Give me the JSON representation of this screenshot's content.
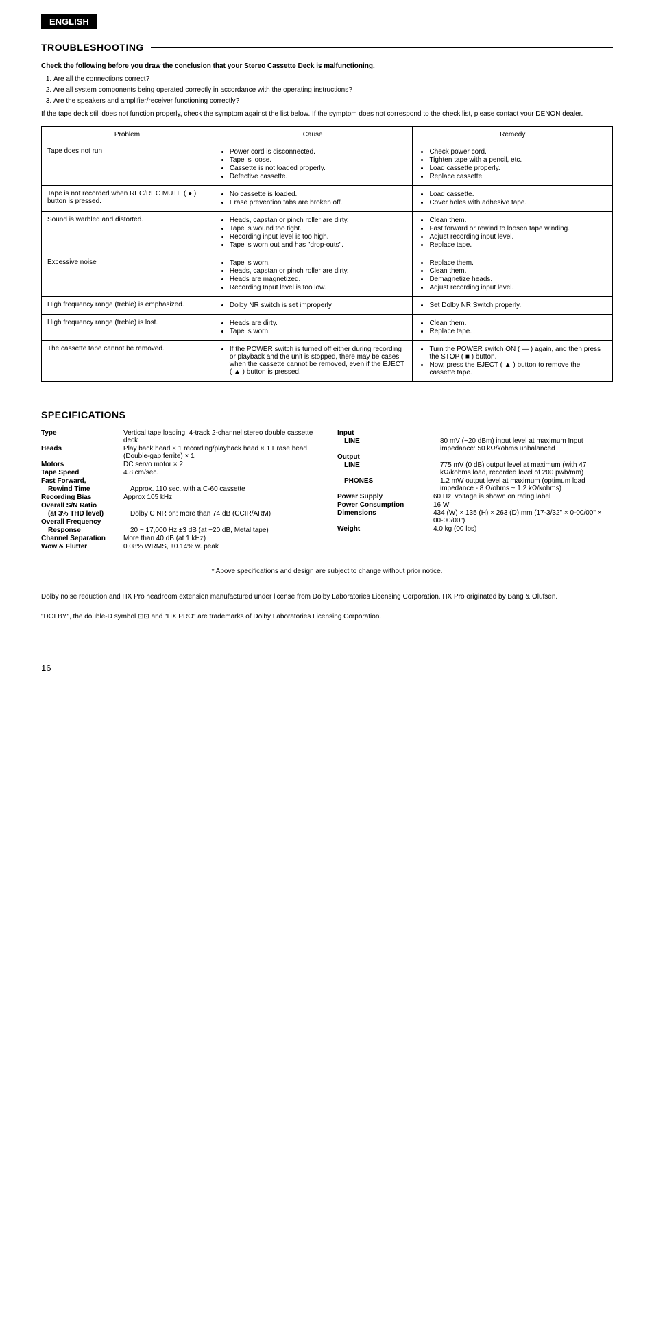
{
  "tag": "ENGLISH",
  "troubleshooting_title": "TROUBLESHOOTING",
  "intro_lead": "Check the following before you draw the conclusion that your Stereo Cassette Deck is malfunctioning.",
  "intro_items": [
    "Are all the connections correct?",
    "Are all system components being operated correctly in accordance with the operating instructions?",
    "Are the speakers and amplifier/receiver functioning correctly?"
  ],
  "intro_tail": "If the tape deck still does not function properly, check the symptom against the list below. If the symptom does not correspond to the check list, please contact your DENON dealer.",
  "headers": {
    "problem": "Problem",
    "cause": "Cause",
    "remedy": "Remedy"
  },
  "rows": [
    {
      "p": "Tape does not run",
      "c": [
        "Power cord is disconnected.",
        "Tape is loose.",
        "Cassette is not loaded properly.",
        "Defective cassette."
      ],
      "r": [
        "Check power cord.",
        "Tighten tape with a pencil, etc.",
        "Load cassette properly.",
        "Replace cassette."
      ]
    },
    {
      "p": "Tape is not recorded when REC/REC MUTE ( ● ) button is pressed.",
      "c": [
        "No cassette is loaded.",
        "Erase prevention tabs are broken off."
      ],
      "r": [
        "Load cassette.",
        "Cover holes with adhesive tape."
      ]
    },
    {
      "p": "Sound is warbled and distorted.",
      "c": [
        "Heads, capstan or pinch roller are dirty.",
        "Tape is wound too tight.",
        "Recording input level is too high.",
        "Tape is worn out and has \"drop-outs\"."
      ],
      "r": [
        "Clean them.",
        "Fast forward or rewind to loosen tape winding.",
        "Adjust recording input level.",
        "Replace tape."
      ]
    },
    {
      "p": "Excessive noise",
      "c": [
        "Tape is worn.",
        "Heads, capstan or pinch roller are dirty.",
        "Heads are magnetized.",
        "Recording Input level is too low."
      ],
      "r": [
        "Replace them.",
        "Clean them.",
        "Demagnetize heads.",
        "Adjust recording input level."
      ]
    },
    {
      "p": "High frequency range (treble) is emphasized.",
      "c": [
        "Dolby NR switch is set improperly."
      ],
      "r": [
        "Set Dolby NR Switch properly."
      ]
    },
    {
      "p": "High frequency range (treble) is lost.",
      "c": [
        "Heads are dirty.",
        "Tape is worn."
      ],
      "r": [
        "Clean them.",
        "Replace tape."
      ]
    },
    {
      "p": "The cassette tape cannot be removed.",
      "c": [
        "If the POWER switch is turned off either during recording or playback and the unit is stopped, there may be cases when the cassette cannot be removed, even if the EJECT ( ▲ ) button is pressed."
      ],
      "r": [
        "Turn the POWER switch ON ( — ) again, and then press the STOP ( ■ ) button.",
        "Now, press the EJECT ( ▲ ) button to remove the cassette tape."
      ]
    }
  ],
  "specs_title": "SPECIFICATIONS",
  "specs_left": [
    {
      "l": "Type",
      "v": "Vertical tape loading; 4-track 2-channel stereo double cassette deck"
    },
    {
      "l": "Heads",
      "v": "Play back head × 1 recording/playback head × 1 Erase head (Double-gap ferrite) × 1"
    },
    {
      "l": "Motors",
      "v": "DC servo motor × 2"
    },
    {
      "l": "Tape Speed",
      "v": "4.8 cm/sec."
    },
    {
      "l": "Fast Forward,",
      "v": ""
    },
    {
      "s": "Rewind Time",
      "v": "Approx. 110 sec. with a C-60 cassette"
    },
    {
      "l": "Recording Bias",
      "v": "Approx 105 kHz"
    },
    {
      "l": "Overall S/N Ratio",
      "v": ""
    },
    {
      "s": "(at 3% THD level)",
      "v": "Dolby C NR on: more than 74 dB (CCIR/ARM)"
    },
    {
      "l": "Overall Frequency",
      "v": ""
    },
    {
      "s": "Response",
      "v": "20 ~ 17,000 Hz ±3 dB (at −20 dB, Metal tape)"
    },
    {
      "l": "Channel Separation",
      "v": "More than 40 dB (at 1 kHz)"
    },
    {
      "l": "Wow & Flutter",
      "v": "0.08% WRMS, ±0.14% w. peak"
    }
  ],
  "specs_right": [
    {
      "l": "Input",
      "v": ""
    },
    {
      "s": "LINE",
      "v": "80 mV (−20 dBm) input level at maximum Input impedance: 50 kΩ/kohms unbalanced"
    },
    {
      "l": "Output",
      "v": ""
    },
    {
      "s": "LINE",
      "v": "775 mV (0 dB) output level at maximum (with 47 kΩ/kohms load, recorded level of 200 pwb/mm)"
    },
    {
      "s": "PHONES",
      "v": "1.2 mW output level at maximum (optimum load impedance - 8 Ω/ohms ~ 1.2 kΩ/kohms)"
    },
    {
      "l": "Power Supply",
      "v": "60 Hz, voltage is shown on rating label"
    },
    {
      "l": "Power Consumption",
      "v": "16 W"
    },
    {
      "l": "Dimensions",
      "v": "434 (W) × 135 (H) × 263 (D) mm (17-3/32\" × 0-00/00\" × 00-00/00\")"
    },
    {
      "l": "Weight",
      "v": "4.0 kg (00 lbs)"
    }
  ],
  "footnote": "* Above specifications and design are subject to change without prior notice.",
  "legal1": "Dolby noise reduction and HX Pro headroom extension manufactured under license from Dolby Laboratories Licensing Corporation. HX Pro originated by Bang & Olufsen.",
  "legal2": "\"DOLBY\", the double-D symbol ⊡⊡ and \"HX PRO\" are trademarks of Dolby Laboratories Licensing Corporation.",
  "pagenum": "16"
}
